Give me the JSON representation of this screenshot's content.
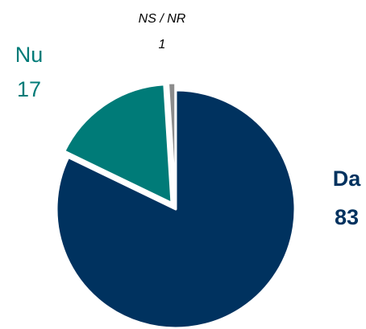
{
  "chart_data": {
    "type": "pie",
    "categories": [
      "Da",
      "Nu",
      "NS / NR"
    ],
    "values": [
      83,
      17,
      1
    ],
    "colors": [
      "#00325f",
      "#007b78",
      "#8c8c8c"
    ]
  }
}
